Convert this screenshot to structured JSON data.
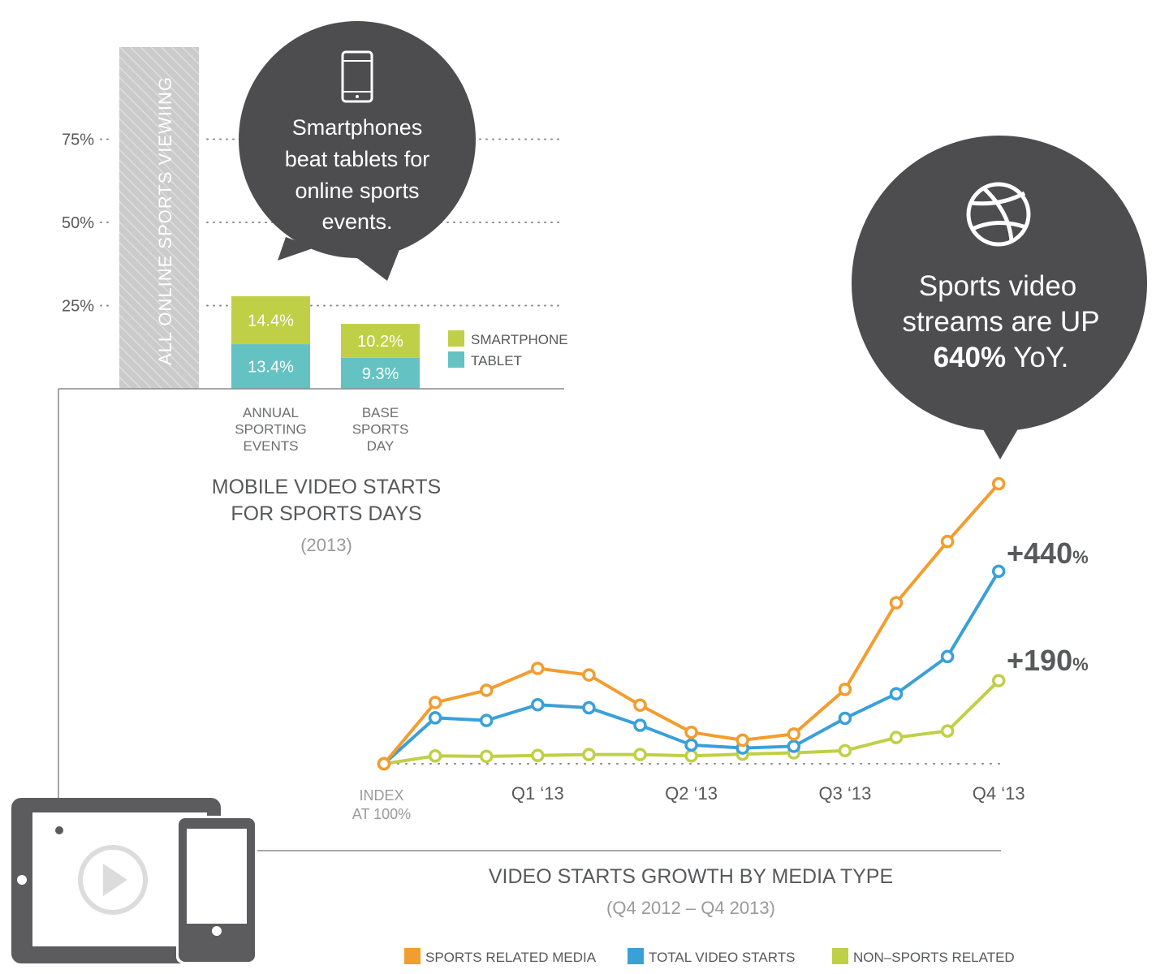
{
  "chart_data": [
    {
      "type": "bar",
      "stacked": true,
      "title": "MOBILE VIDEO STARTS FOR SPORTS DAYS",
      "subtitle": "(2013)",
      "title_lines": [
        "MOBILE VIDEO STARTS",
        "FOR SPORTS DAYS"
      ],
      "reference_bar_label": "ALL ONLINE SPORTS VIEWIING",
      "y_ticks": [
        "75%",
        "50%",
        "25%"
      ],
      "y_tick_values": [
        75,
        50,
        25
      ],
      "ylim": [
        0,
        100
      ],
      "grid": "dotted",
      "legend_position": "right",
      "categories": [
        "ANNUAL SPORTING EVENTS",
        "BASE SPORTS DAY"
      ],
      "category_lines": [
        [
          "ANNUAL",
          "SPORTING",
          "EVENTS"
        ],
        [
          "BASE",
          "SPORTS",
          "DAY"
        ]
      ],
      "series": [
        {
          "name": "TABLET",
          "values": [
            13.4,
            9.3
          ],
          "labels": [
            "13.4%",
            "9.3%"
          ],
          "color": "#64c2c2"
        },
        {
          "name": "SMARTPHONE",
          "values": [
            14.4,
            10.2
          ],
          "labels": [
            "14.4%",
            "10.2%"
          ],
          "color": "#bfd046"
        }
      ],
      "callout": {
        "icon": "smartphone-icon",
        "lines": [
          "Smartphones",
          "beat tablets for",
          "online sports",
          "events."
        ]
      }
    },
    {
      "type": "line",
      "title": "VIDEO STARTS GROWTH BY MEDIA TYPE",
      "subtitle": "(Q4 2012 – Q4 2013)",
      "x_labels": [
        "Q1 ‘13",
        "Q2 ‘13",
        "Q3 ‘13",
        "Q4 ‘13"
      ],
      "x_label_positions": [
        3,
        6,
        9,
        12
      ],
      "index_label_lines": [
        "INDEX",
        "AT 100%"
      ],
      "ylim": [
        100,
        740
      ],
      "legend_position": "bottom",
      "series": [
        {
          "name": "SPORTS RELATED MEDIA",
          "color": "#f29d2f",
          "values": [
            100,
            240,
            268,
            318,
            303,
            234,
            172,
            154,
            168,
            270,
            468,
            608,
            740
          ]
        },
        {
          "name": "TOTAL VIDEO STARTS",
          "color": "#3aa0d8",
          "values": [
            100,
            205,
            199,
            235,
            228,
            188,
            143,
            136,
            140,
            204,
            260,
            345,
            540
          ]
        },
        {
          "name": "NON–SPORTS RELATED",
          "color": "#bfd046",
          "values": [
            100,
            118,
            117,
            119,
            121,
            121,
            118,
            122,
            125,
            130,
            160,
            175,
            290
          ]
        }
      ],
      "end_labels": [
        {
          "series": "TOTAL VIDEO STARTS",
          "value": "+440",
          "unit": "%"
        },
        {
          "series": "NON–SPORTS RELATED",
          "value": "+190",
          "unit": "%"
        }
      ],
      "callout": {
        "icon": "basketball-icon",
        "lines": [
          "Sports video",
          "streams are UP"
        ],
        "highlight": "640%",
        "suffix": "YoY."
      }
    }
  ],
  "colors": {
    "callout": "#4d4d4f",
    "text": "#58595b",
    "muted": "#8a8a8a",
    "reference_bar": "#cbcbcb",
    "device_icon": "#5c5c5e"
  },
  "decor": {
    "devices_icon": "tablet-and-phone-video-icon"
  }
}
